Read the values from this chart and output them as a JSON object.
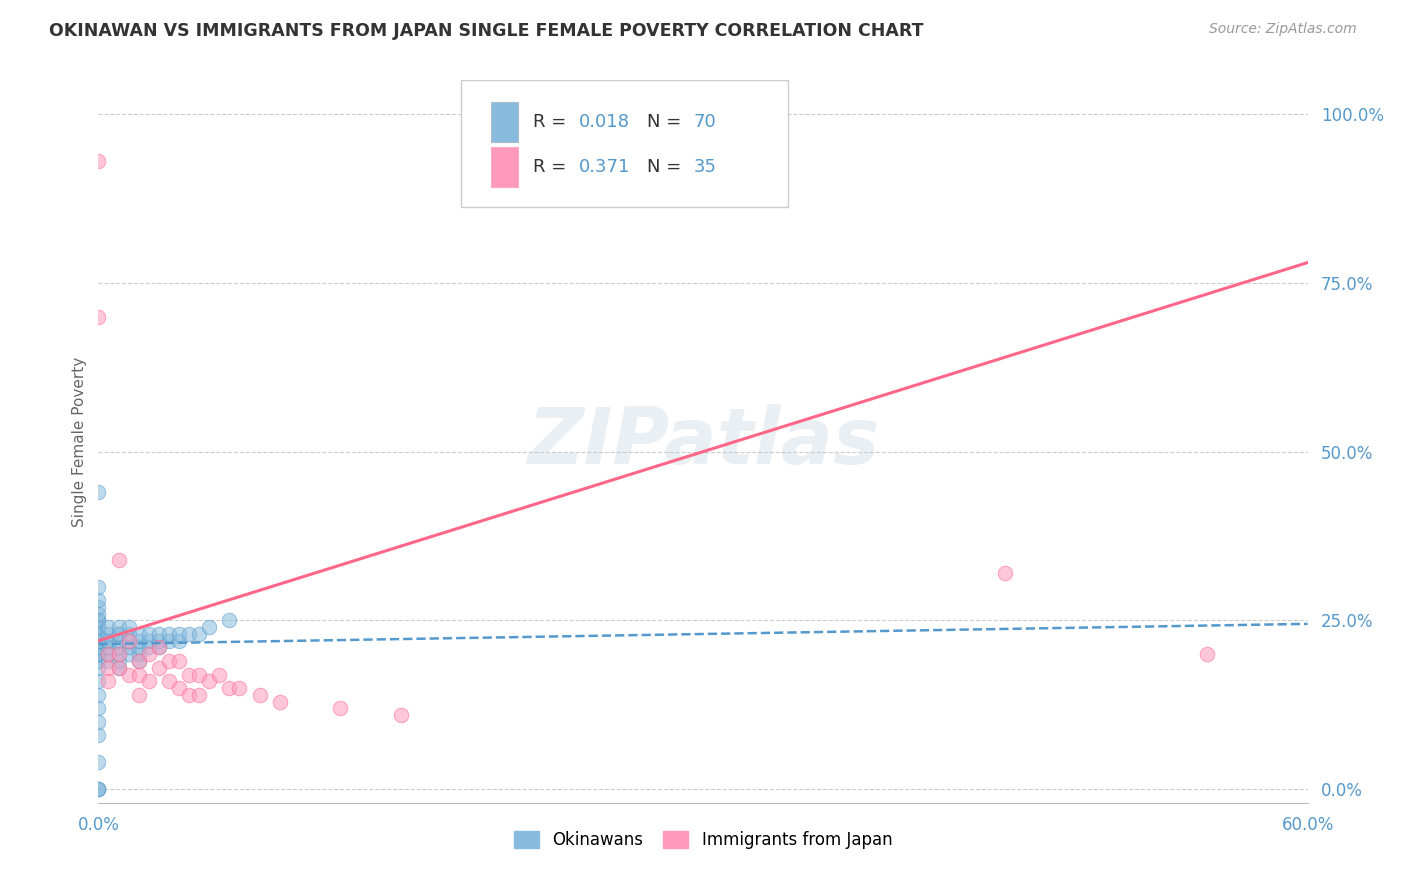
{
  "title": "OKINAWAN VS IMMIGRANTS FROM JAPAN SINGLE FEMALE POVERTY CORRELATION CHART",
  "source": "Source: ZipAtlas.com",
  "ylabel": "Single Female Poverty",
  "xlim": [
    0.0,
    0.6
  ],
  "ylim": [
    -0.02,
    1.05
  ],
  "watermark_text": "ZIPatlas",
  "label1": "Okinawans",
  "label2": "Immigrants from Japan",
  "color_blue": "#88BBDD",
  "color_pink": "#FF99BB",
  "trendline_blue_color": "#5599CC",
  "trendline_pink_color": "#FF6688",
  "background": "#FFFFFF",
  "grid_color": "#CCCCCC",
  "title_color": "#333333",
  "axis_color": "#5599CC",
  "x_ticks": [
    0.0,
    0.2,
    0.4,
    0.6
  ],
  "x_tick_labels": [
    "0.0%",
    "",
    "",
    "60.0%"
  ],
  "y_ticks": [
    0.0,
    0.25,
    0.5,
    0.75,
    1.0
  ],
  "y_tick_labels": [
    "0.0%",
    "25.0%",
    "50.0%",
    "75.0%",
    "100.0%"
  ],
  "okinawan_x": [
    0.0,
    0.0,
    0.0,
    0.0,
    0.0,
    0.0,
    0.0,
    0.0,
    0.0,
    0.0,
    0.0,
    0.0,
    0.0,
    0.0,
    0.0,
    0.0,
    0.0,
    0.0,
    0.0,
    0.0,
    0.0,
    0.0,
    0.0,
    0.0,
    0.0,
    0.0,
    0.0,
    0.0,
    0.0,
    0.0,
    0.005,
    0.005,
    0.005,
    0.005,
    0.005,
    0.005,
    0.005,
    0.01,
    0.01,
    0.01,
    0.01,
    0.01,
    0.01,
    0.01,
    0.01,
    0.015,
    0.015,
    0.015,
    0.015,
    0.015,
    0.02,
    0.02,
    0.02,
    0.02,
    0.02,
    0.025,
    0.025,
    0.025,
    0.03,
    0.03,
    0.03,
    0.035,
    0.035,
    0.04,
    0.04,
    0.045,
    0.05,
    0.055,
    0.065
  ],
  "okinawan_y": [
    0.0,
    0.0,
    0.0,
    0.04,
    0.08,
    0.1,
    0.12,
    0.14,
    0.16,
    0.18,
    0.19,
    0.2,
    0.2,
    0.2,
    0.2,
    0.21,
    0.22,
    0.22,
    0.23,
    0.23,
    0.23,
    0.24,
    0.24,
    0.25,
    0.25,
    0.26,
    0.27,
    0.28,
    0.3,
    0.44,
    0.19,
    0.2,
    0.21,
    0.22,
    0.22,
    0.23,
    0.24,
    0.18,
    0.19,
    0.2,
    0.21,
    0.22,
    0.23,
    0.23,
    0.24,
    0.2,
    0.21,
    0.22,
    0.23,
    0.24,
    0.19,
    0.2,
    0.21,
    0.22,
    0.23,
    0.21,
    0.22,
    0.23,
    0.21,
    0.22,
    0.23,
    0.22,
    0.23,
    0.22,
    0.23,
    0.23,
    0.23,
    0.24,
    0.25
  ],
  "immigrant_x": [
    0.0,
    0.0,
    0.005,
    0.005,
    0.005,
    0.01,
    0.01,
    0.01,
    0.015,
    0.015,
    0.02,
    0.02,
    0.02,
    0.025,
    0.025,
    0.03,
    0.03,
    0.035,
    0.035,
    0.04,
    0.04,
    0.045,
    0.045,
    0.05,
    0.05,
    0.055,
    0.06,
    0.065,
    0.07,
    0.08,
    0.09,
    0.12,
    0.15,
    0.45,
    0.55
  ],
  "immigrant_y": [
    0.93,
    0.7,
    0.2,
    0.18,
    0.16,
    0.34,
    0.2,
    0.18,
    0.22,
    0.17,
    0.19,
    0.17,
    0.14,
    0.2,
    0.16,
    0.21,
    0.18,
    0.19,
    0.16,
    0.19,
    0.15,
    0.17,
    0.14,
    0.17,
    0.14,
    0.16,
    0.17,
    0.15,
    0.15,
    0.14,
    0.13,
    0.12,
    0.11,
    0.32,
    0.2
  ],
  "trend_blue_x0": 0.0,
  "trend_blue_x1": 0.6,
  "trend_blue_y0": 0.215,
  "trend_blue_y1": 0.245,
  "trend_pink_x0": 0.0,
  "trend_pink_x1": 0.6,
  "trend_pink_y0": 0.22,
  "trend_pink_y1": 0.78
}
